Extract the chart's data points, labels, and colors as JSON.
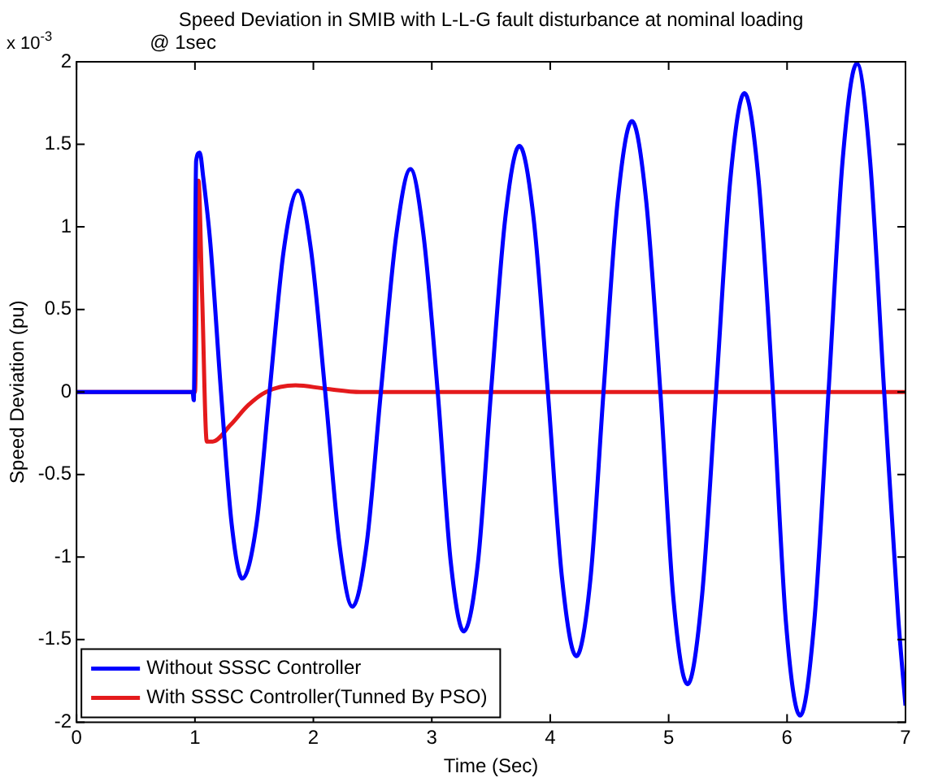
{
  "chart_data": {
    "type": "line",
    "title": "Speed Deviation in SMIB with L-L-G fault disturbance at nominal loading",
    "subtitle": "@ 1sec",
    "xlabel": "Time (Sec)",
    "ylabel": "Speed Deviation (pu)",
    "annotations": [
      "x 10$^{-3}$"
    ],
    "xlim": [
      0,
      7
    ],
    "xticks": [
      0,
      1,
      2,
      3,
      4,
      5,
      6,
      7
    ],
    "ylim": [
      -2,
      2
    ],
    "yticks": [
      -2,
      -1.5,
      -1,
      -0.5,
      0,
      0.5,
      1,
      1.5,
      2
    ],
    "grid": false,
    "legend": "bottom left",
    "marker": "none",
    "line_style": "solid",
    "series": [
      {
        "name": "Without SSSC Controller",
        "color": "#0000ff",
        "x": [
          0,
          0.98,
          0.99,
          1.01,
          1.04,
          1.07,
          1.13,
          1.22,
          1.31,
          1.4,
          1.52,
          1.63,
          1.75,
          1.87,
          1.98,
          2.1,
          2.22,
          2.33,
          2.45,
          2.57,
          2.7,
          2.82,
          2.93,
          3.05,
          3.16,
          3.27,
          3.39,
          3.5,
          3.62,
          3.74,
          3.86,
          3.98,
          4.1,
          4.22,
          4.34,
          4.45,
          4.57,
          4.69,
          4.81,
          4.93,
          5.04,
          5.16,
          5.28,
          5.4,
          5.52,
          5.64,
          5.76,
          5.88,
          5.99,
          6.11,
          6.23,
          6.35,
          6.47,
          6.59,
          6.7,
          6.82,
          6.94,
          7
        ],
        "values": [
          0,
          0,
          -0.05,
          1.4,
          1.45,
          1.3,
          0.9,
          0,
          -0.8,
          -1.13,
          -0.8,
          0,
          0.86,
          1.22,
          0.86,
          0,
          -0.92,
          -1.3,
          -0.92,
          0,
          0.95,
          1.35,
          0.95,
          0,
          -1.03,
          -1.45,
          -1.03,
          0,
          1.05,
          1.49,
          1.05,
          0,
          -1.13,
          -1.6,
          -1.13,
          0,
          1.16,
          1.64,
          1.16,
          0,
          -1.25,
          -1.77,
          -1.25,
          0,
          1.28,
          1.81,
          1.28,
          0,
          -1.39,
          -1.96,
          -1.39,
          0,
          1.41,
          1.99,
          1.41,
          0,
          -1.38,
          -1.9
        ]
      },
      {
        "name": "With SSSC Controller(Tunned By PSO)",
        "color": "#e41a1c",
        "x": [
          0,
          1.0,
          1.03,
          1.06,
          1.1,
          1.15,
          1.3,
          1.45,
          1.6,
          1.85,
          2.1,
          2.4,
          7
        ],
        "values": [
          0,
          0,
          1.28,
          0.6,
          -0.3,
          -0.3,
          -0.2,
          -0.08,
          0,
          0.04,
          0.02,
          0,
          0
        ]
      }
    ]
  }
}
